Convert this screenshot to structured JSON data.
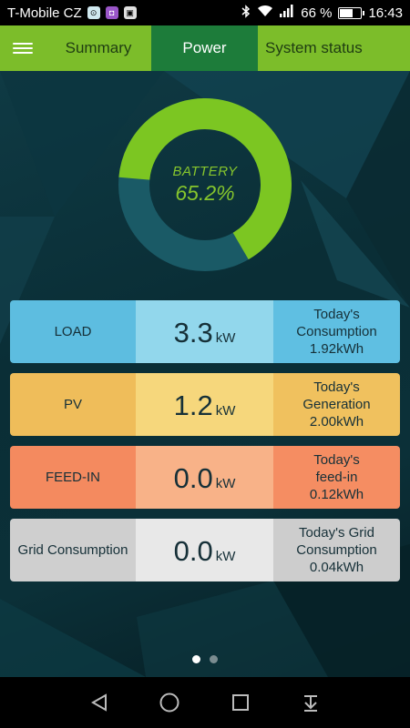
{
  "status_bar": {
    "carrier": "T-Mobile CZ",
    "battery_percent": "66 %",
    "battery_level": 0.66,
    "time": "16:43",
    "icons": [
      "notification-icon-1",
      "notification-icon-2",
      "notification-icon-3",
      "bluetooth-icon",
      "wifi-icon",
      "signal-icon",
      "battery-icon"
    ]
  },
  "nav": {
    "tabs": [
      {
        "label": "Summary",
        "active": false
      },
      {
        "label": "Power",
        "active": true
      },
      {
        "label": "System status",
        "active": false
      }
    ]
  },
  "battery_gauge": {
    "title": "BATTERY",
    "value_text": "65.2%",
    "level": 0.652,
    "fill_color": "#7cc622",
    "track_color": "#1a5a66"
  },
  "rows": [
    {
      "label": "LOAD",
      "value": "3.3",
      "unit": "kW",
      "today_line1": "Today's",
      "today_line2": "Consumption",
      "today_value": "1.92kWh"
    },
    {
      "label": "PV",
      "value": "1.2",
      "unit": "kW",
      "today_line1": "Today's",
      "today_line2": "Generation",
      "today_value": "2.00kWh"
    },
    {
      "label": "FEED-IN",
      "value": "0.0",
      "unit": "kW",
      "today_line1": "Today's",
      "today_line2": "feed-in",
      "today_value": "0.12kWh"
    },
    {
      "label": "Grid Consumption",
      "value": "0.0",
      "unit": "kW",
      "today_line1": "Today's Grid",
      "today_line2": "Consumption",
      "today_value": "0.04kWh"
    }
  ],
  "pager": {
    "count": 2,
    "active_index": 0
  },
  "system_nav": {
    "buttons": [
      "back-icon",
      "home-icon",
      "recents-icon",
      "notifications-pull-icon"
    ]
  }
}
